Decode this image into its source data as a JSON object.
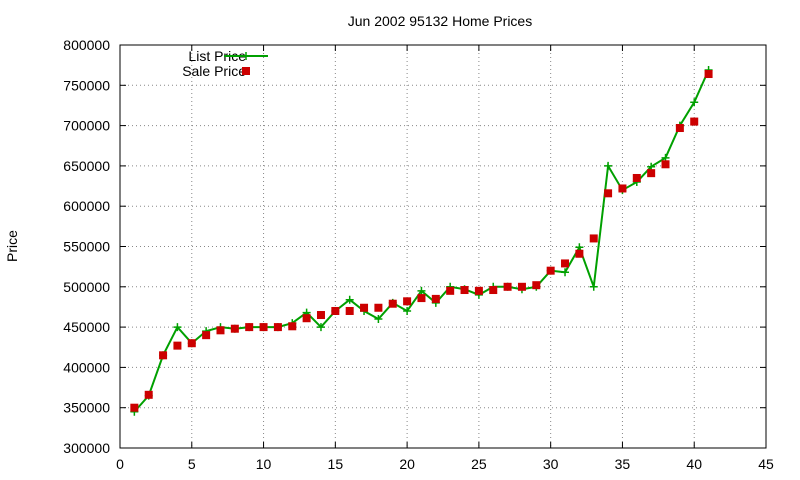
{
  "chart_data": {
    "type": "line",
    "title": "Jun 2002 95132 Home Prices",
    "xlabel": "",
    "ylabel": "Price",
    "xlim": [
      0,
      45
    ],
    "ylim": [
      300000,
      800000
    ],
    "xticks": [
      0,
      5,
      10,
      15,
      20,
      25,
      30,
      35,
      40,
      45
    ],
    "yticks": [
      300000,
      350000,
      400000,
      450000,
      500000,
      550000,
      600000,
      650000,
      700000,
      750000,
      800000
    ],
    "grid": true,
    "legend_position": "top-left",
    "series": [
      {
        "name": "List Price",
        "style": "line-with-plus-markers",
        "color": "#00a000",
        "x": [
          1,
          2,
          3,
          4,
          5,
          6,
          7,
          8,
          9,
          10,
          11,
          12,
          13,
          14,
          15,
          16,
          17,
          18,
          19,
          20,
          21,
          22,
          23,
          24,
          25,
          26,
          27,
          28,
          29,
          30,
          31,
          32,
          33,
          34,
          35,
          36,
          37,
          38,
          39,
          40,
          41
        ],
        "values": [
          345000,
          365000,
          415000,
          450000,
          430000,
          445000,
          450000,
          448000,
          450000,
          450000,
          450000,
          455000,
          468000,
          450000,
          470000,
          484000,
          470000,
          460000,
          480000,
          470000,
          495000,
          480000,
          500000,
          497000,
          490000,
          500000,
          500000,
          497000,
          500000,
          520000,
          518000,
          549000,
          500000,
          650000,
          620000,
          630000,
          649000,
          660000,
          700000,
          729000,
          769000
        ]
      },
      {
        "name": "Sale Price",
        "style": "square-markers",
        "color": "#cc0000",
        "x": [
          1,
          2,
          3,
          4,
          5,
          6,
          7,
          8,
          9,
          10,
          11,
          12,
          13,
          14,
          15,
          16,
          17,
          18,
          19,
          20,
          21,
          22,
          23,
          24,
          25,
          26,
          27,
          28,
          29,
          30,
          31,
          32,
          33,
          34,
          35,
          36,
          37,
          38,
          39,
          40,
          41
        ],
        "values": [
          350000,
          366000,
          415000,
          427000,
          430000,
          440000,
          446000,
          448000,
          450000,
          450000,
          450000,
          451000,
          461000,
          465000,
          470000,
          470000,
          474000,
          474000,
          479000,
          482000,
          486000,
          485000,
          495000,
          496000,
          495000,
          496000,
          500000,
          500000,
          502000,
          520000,
          529000,
          541000,
          560000,
          616000,
          622000,
          635000,
          641000,
          652000,
          697000,
          705000,
          764000
        ]
      }
    ]
  }
}
